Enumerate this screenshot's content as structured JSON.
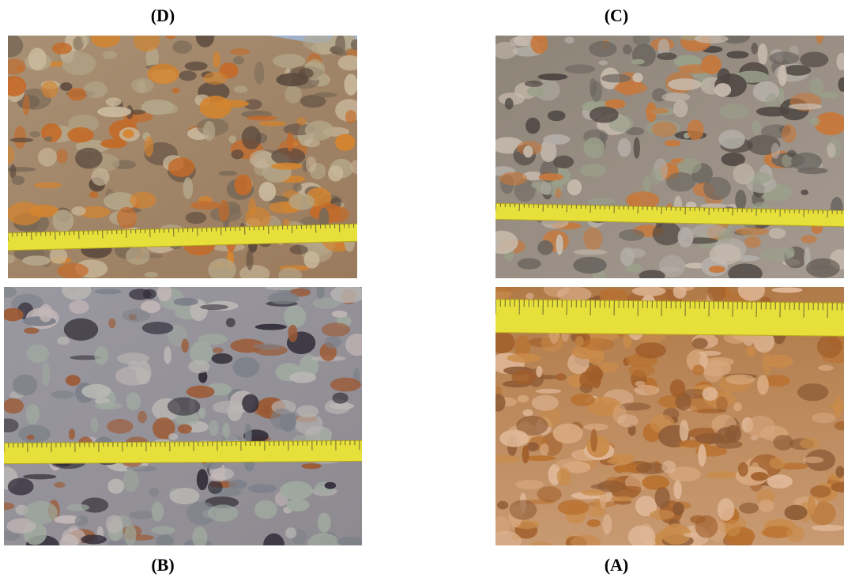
{
  "figure": {
    "panels": [
      {
        "label": "(D)"
      },
      {
        "label": "(C)"
      },
      {
        "label": "(B)"
      },
      {
        "label": "(A)"
      }
    ]
  }
}
